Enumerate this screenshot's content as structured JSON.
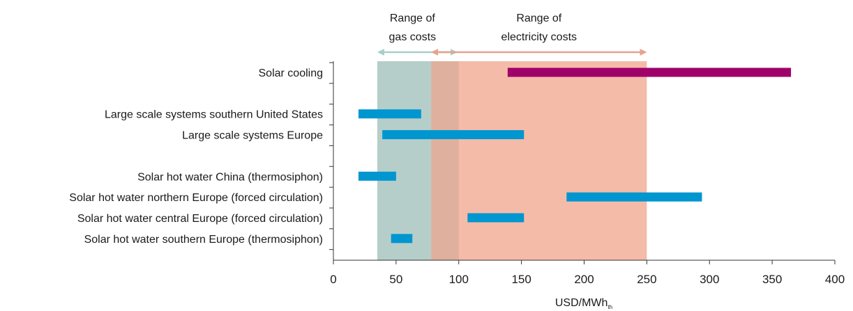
{
  "chart_data": {
    "type": "bar",
    "orientation": "horizontal-range",
    "xlabel": "USD/MWh",
    "xlabel_subscript": "th",
    "xlim": [
      0,
      400
    ],
    "xticks": [
      0,
      50,
      100,
      150,
      200,
      250,
      300,
      350,
      400
    ],
    "grid": false,
    "categories": [
      "Solar cooling",
      "",
      "Large scale systems southern United States",
      "Large scale systems Europe",
      "",
      "Solar hot water China (thermosiphon)",
      "Solar hot water northern Europe (forced circulation)",
      "Solar hot water central Europe (forced circulation)",
      "Solar hot water southern Europe (thermosiphon)"
    ],
    "bars": [
      {
        "category": "Solar cooling",
        "low": 139,
        "high": 365,
        "color": "#a0006a"
      },
      {
        "category": "Large scale systems southern United States",
        "low": 20,
        "high": 70,
        "color": "#0096d0"
      },
      {
        "category": "Large scale systems Europe",
        "low": 39,
        "high": 152,
        "color": "#0096d0"
      },
      {
        "category": "Solar hot water China (thermosiphon)",
        "low": 20,
        "high": 50,
        "color": "#0096d0"
      },
      {
        "category": "Solar hot water northern Europe (forced circulation)",
        "low": 186,
        "high": 294,
        "color": "#0096d0"
      },
      {
        "category": "Solar hot water central Europe (forced circulation)",
        "low": 107,
        "high": 152,
        "color": "#0096d0"
      },
      {
        "category": "Solar hot water southern Europe (thermosiphon)",
        "low": 46,
        "high": 63,
        "color": "#0096d0"
      }
    ],
    "ranges": [
      {
        "label_line1": "Range of",
        "label_line2": "gas costs",
        "low": 35,
        "high": 100,
        "color": "#b6cec9",
        "arrow_color": "#a9cfcc"
      },
      {
        "label_line1": "Range of",
        "label_line2": "electricity costs",
        "low": 78,
        "high": 250,
        "color": "#f4bba9",
        "arrow_color": "#e8a18a"
      }
    ],
    "overlap_color": "#dfb09d"
  }
}
